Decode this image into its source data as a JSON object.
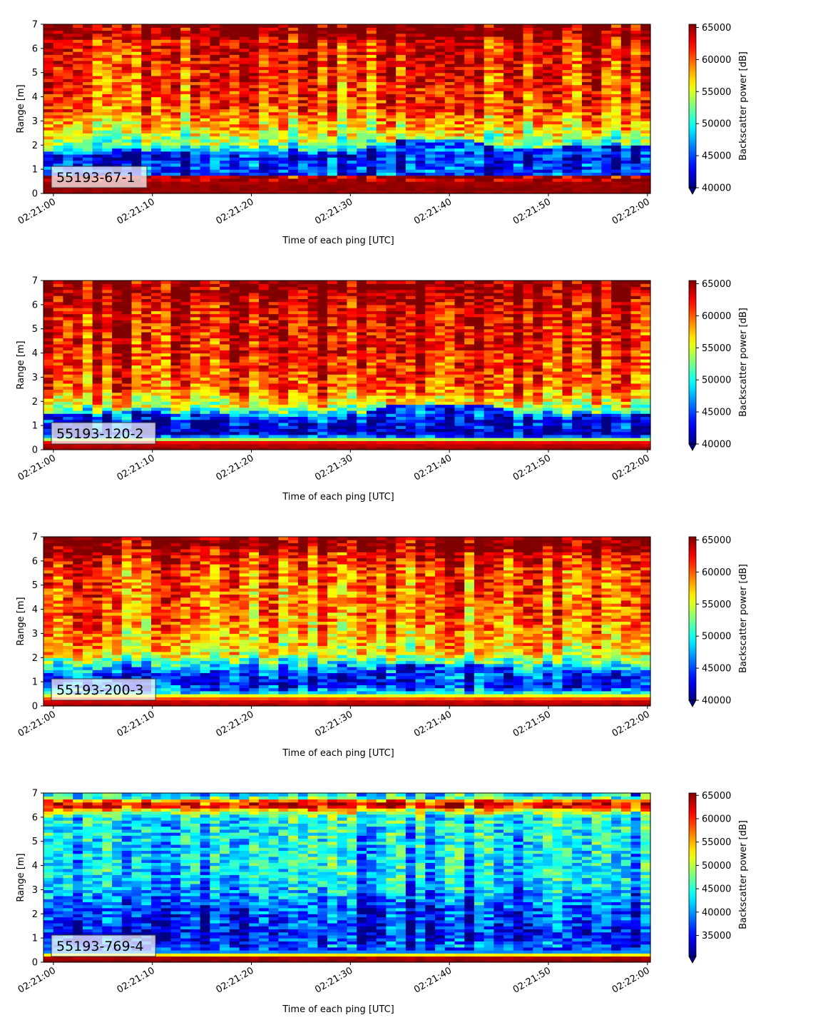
{
  "chart_data": [
    {
      "type": "heatmap",
      "panel_label": "55193-67-1",
      "xlabel": "Time of each ping [UTC]",
      "ylabel": "Range [m]",
      "xticks": [
        "02:21:00",
        "02:21:10",
        "02:21:20",
        "02:21:30",
        "02:21:40",
        "02:21:50",
        "02:22:00"
      ],
      "xlim": [
        -1,
        60.3
      ],
      "ylim": [
        0,
        7
      ],
      "yticks": [
        0,
        1,
        2,
        3,
        4,
        5,
        6,
        7
      ],
      "colorbar": {
        "label": "Backscatter power [dB]",
        "min": 40000,
        "max": 65500,
        "extend": "min",
        "ticks": [
          40000,
          45000,
          50000,
          55000,
          60000,
          65000
        ]
      },
      "profile": [
        {
          "range_m": 0.0,
          "value": 65000
        },
        {
          "range_m": 0.25,
          "value": 65000
        },
        {
          "range_m": 1.05,
          "value": 63500
        },
        {
          "range_m": 1.2,
          "value": 50000
        },
        {
          "range_m": 1.5,
          "value": 41500
        },
        {
          "range_m": 2.0,
          "value": 52000
        },
        {
          "range_m": 2.6,
          "value": 56000
        },
        {
          "range_m": 3.5,
          "value": 60000
        },
        {
          "range_m": 5.0,
          "value": 61500
        },
        {
          "range_m": 6.3,
          "value": 62500
        },
        {
          "range_m": 6.5,
          "value": 65000
        },
        {
          "range_m": 7.0,
          "value": 65000
        }
      ],
      "low_layer": [
        {
          "time_s": 0,
          "top_m": 1.6
        },
        {
          "time_s": 10,
          "top_m": 1.8
        },
        {
          "time_s": 20,
          "top_m": 1.5
        },
        {
          "time_s": 30,
          "top_m": 1.6
        },
        {
          "time_s": 35,
          "top_m": 2.2
        },
        {
          "time_s": 42,
          "top_m": 2.2
        },
        {
          "time_s": 46,
          "top_m": 1.8
        },
        {
          "time_s": 52,
          "top_m": 2.0
        },
        {
          "time_s": 60,
          "top_m": 2.0
        }
      ]
    },
    {
      "type": "heatmap",
      "panel_label": "55193-120-2",
      "xlabel": "Time of each ping [UTC]",
      "ylabel": "Range [m]",
      "xticks": [
        "02:21:00",
        "02:21:10",
        "02:21:20",
        "02:21:30",
        "02:21:40",
        "02:21:50",
        "02:22:00"
      ],
      "xlim": [
        -1,
        60.3
      ],
      "ylim": [
        0,
        7
      ],
      "yticks": [
        0,
        1,
        2,
        3,
        4,
        5,
        6,
        7
      ],
      "colorbar": {
        "label": "Backscatter power [dB]",
        "min": 40000,
        "max": 65500,
        "extend": "min",
        "ticks": [
          40000,
          45000,
          50000,
          55000,
          60000,
          65000
        ]
      },
      "profile": [
        {
          "range_m": 0.0,
          "value": 65000
        },
        {
          "range_m": 0.3,
          "value": 63500
        },
        {
          "range_m": 0.55,
          "value": 46000
        },
        {
          "range_m": 0.7,
          "value": 41000
        },
        {
          "range_m": 1.2,
          "value": 43000
        },
        {
          "range_m": 1.8,
          "value": 55000
        },
        {
          "range_m": 2.5,
          "value": 60000
        },
        {
          "range_m": 4.0,
          "value": 62000
        },
        {
          "range_m": 6.0,
          "value": 63000
        },
        {
          "range_m": 6.5,
          "value": 65000
        },
        {
          "range_m": 7.0,
          "value": 65000
        }
      ],
      "low_layer": [
        {
          "time_s": 0,
          "top_m": 1.5
        },
        {
          "time_s": 10,
          "top_m": 1.6
        },
        {
          "time_s": 20,
          "top_m": 1.3
        },
        {
          "time_s": 30,
          "top_m": 1.4
        },
        {
          "time_s": 34,
          "top_m": 1.9
        },
        {
          "time_s": 44,
          "top_m": 1.9
        },
        {
          "time_s": 48,
          "top_m": 1.4
        },
        {
          "time_s": 60,
          "top_m": 1.5
        }
      ]
    },
    {
      "type": "heatmap",
      "panel_label": "55193-200-3",
      "xlabel": "Time of each ping [UTC]",
      "ylabel": "Range [m]",
      "xticks": [
        "02:21:00",
        "02:21:10",
        "02:21:20",
        "02:21:30",
        "02:21:40",
        "02:21:50",
        "02:22:00"
      ],
      "xlim": [
        -1,
        60.3
      ],
      "ylim": [
        0,
        7
      ],
      "yticks": [
        0,
        1,
        2,
        3,
        4,
        5,
        6,
        7
      ],
      "colorbar": {
        "label": "Backscatter power [dB]",
        "min": 40000,
        "max": 65500,
        "extend": "min",
        "ticks": [
          40000,
          45000,
          50000,
          55000,
          60000,
          65000
        ]
      },
      "profile": [
        {
          "range_m": 0.0,
          "value": 65000
        },
        {
          "range_m": 0.25,
          "value": 63000
        },
        {
          "range_m": 0.45,
          "value": 55000
        },
        {
          "range_m": 0.6,
          "value": 47000
        },
        {
          "range_m": 1.0,
          "value": 43000
        },
        {
          "range_m": 1.6,
          "value": 48000
        },
        {
          "range_m": 2.2,
          "value": 56000
        },
        {
          "range_m": 3.5,
          "value": 59000
        },
        {
          "range_m": 5.5,
          "value": 60000
        },
        {
          "range_m": 6.3,
          "value": 62500
        },
        {
          "range_m": 6.6,
          "value": 65000
        },
        {
          "range_m": 7.0,
          "value": 65000
        }
      ],
      "low_layer": [
        {
          "time_s": 0,
          "top_m": 1.4
        },
        {
          "time_s": 10,
          "top_m": 1.5
        },
        {
          "time_s": 20,
          "top_m": 1.2
        },
        {
          "time_s": 30,
          "top_m": 1.3
        },
        {
          "time_s": 35,
          "top_m": 1.8
        },
        {
          "time_s": 44,
          "top_m": 1.8
        },
        {
          "time_s": 48,
          "top_m": 1.4
        },
        {
          "time_s": 60,
          "top_m": 1.5
        }
      ]
    },
    {
      "type": "heatmap",
      "panel_label": "55193-769-4",
      "xlabel": "Time of each ping [UTC]",
      "ylabel": "Range [m]",
      "xticks": [
        "02:21:00",
        "02:21:10",
        "02:21:20",
        "02:21:30",
        "02:21:40",
        "02:21:50",
        "02:22:00"
      ],
      "xlim": [
        -1,
        60.3
      ],
      "ylim": [
        0,
        7
      ],
      "yticks": [
        0,
        1,
        2,
        3,
        4,
        5,
        6,
        7
      ],
      "colorbar": {
        "label": "Backscatter power [dB]",
        "min": 30500,
        "max": 65500,
        "extend": "min",
        "ticks": [
          35000,
          40000,
          45000,
          50000,
          55000,
          60000,
          65000
        ]
      },
      "profile": [
        {
          "range_m": 0.0,
          "value": 65000
        },
        {
          "range_m": 0.2,
          "value": 64000
        },
        {
          "range_m": 0.32,
          "value": 52000
        },
        {
          "range_m": 0.45,
          "value": 38000
        },
        {
          "range_m": 1.2,
          "value": 34000
        },
        {
          "range_m": 2.2,
          "value": 37500
        },
        {
          "range_m": 3.5,
          "value": 42000
        },
        {
          "range_m": 5.0,
          "value": 42500
        },
        {
          "range_m": 6.0,
          "value": 43000
        },
        {
          "range_m": 6.3,
          "value": 52000
        },
        {
          "range_m": 6.5,
          "value": 63000
        },
        {
          "range_m": 6.7,
          "value": 55000
        },
        {
          "range_m": 6.85,
          "value": 42000
        },
        {
          "range_m": 7.0,
          "value": 42000
        }
      ],
      "low_layer": [
        {
          "time_s": 0,
          "top_m": 2.6
        },
        {
          "time_s": 10,
          "top_m": 2.4
        },
        {
          "time_s": 20,
          "top_m": 2.2
        },
        {
          "time_s": 30,
          "top_m": 2.8
        },
        {
          "time_s": 38,
          "top_m": 2.4
        },
        {
          "time_s": 46,
          "top_m": 2.0
        },
        {
          "time_s": 52,
          "top_m": 2.4
        },
        {
          "time_s": 60,
          "top_m": 2.2
        }
      ]
    }
  ]
}
